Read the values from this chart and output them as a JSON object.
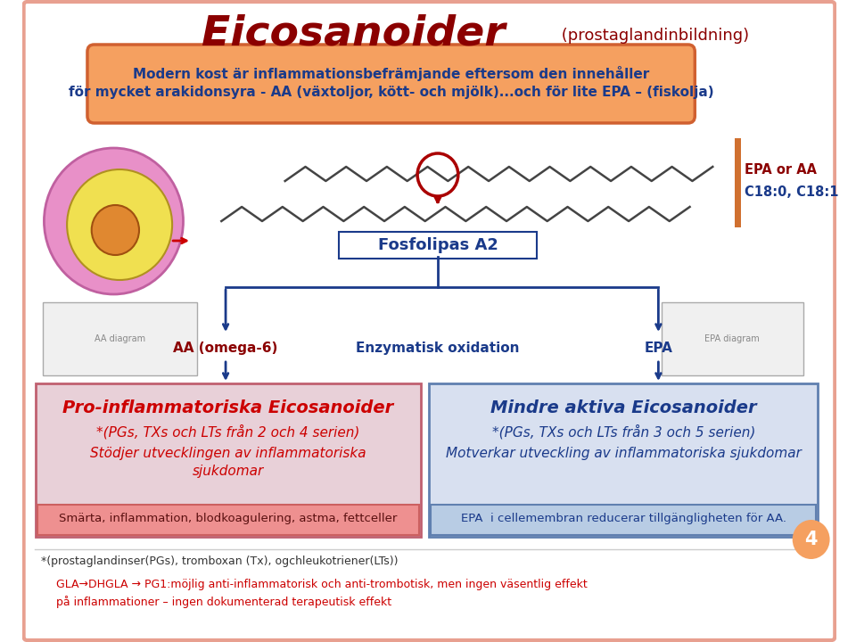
{
  "title_main": "Eicosanoider",
  "title_sub": " (prostaglandinbildning)",
  "title_color": "#8B0000",
  "title_sub_color": "#8B0000",
  "bg_color": "#FFFFFF",
  "border_color": "#E8A090",
  "orange_box_text1": "Modern kost är inflammationsbefrämjande eftersom den innehåller",
  "orange_box_text2": "för mycket arakidonsyra - AA (växtoljor, kött- och mjölk)...och för lite EPA – (fiskolja)",
  "orange_box_color": "#F5A060",
  "orange_box_border": "#D06030",
  "epa_aa_label": "EPA or AA",
  "c_label": "C18:0, C18:1",
  "fosfolipas_label": "Fosfolipas A2",
  "aa_label": "AA (omega-6)",
  "enzymatic_label": "Enzymatisk oxidation",
  "epa_label": "EPA",
  "left_box_title": "Pro-inflammatoriska Eicosanoider",
  "left_box_line1": "*(PGs, TXs och LTs från 2 och 4 serien)",
  "left_box_line2": "Stödjer utvecklingen av inflammatoriska",
  "left_box_line3": "sjukdomar",
  "left_box_bottom": "Smärta, inflammation, blodkoagulering, astma, fettceller",
  "left_box_bg": "#E8D0D8",
  "left_box_border": "#C06070",
  "left_box_title_color": "#CC0000",
  "left_box_text_color": "#CC0000",
  "left_bottom_bg": "#EE9090",
  "left_bottom_text_color": "#5A1010",
  "right_box_title": "Mindre aktiva Eicosanoider",
  "right_box_line1": "*(PGs, TXs och LTs från 3 och 5 serien)",
  "right_box_line2": "Motverkar utveckling av inflammatoriska sjukdomar",
  "right_box_bottom": "EPA  i cellemembran reducerar tillgängligheten för AA.",
  "right_box_bg": "#D8E0F0",
  "right_box_border": "#6080B0",
  "right_box_title_color": "#1A3A8A",
  "right_box_text_color": "#1A3A8A",
  "right_bottom_bg": "#B8CCE4",
  "footer1": "*(prostaglandinser(PGs), tromboxan (Tx), ogchleukotriener(LTs))",
  "footer2": "GLA→DHGLA → PG1:möjlig anti-inflammatorisk och anti-trombotisk, men ingen väsentlig effekt",
  "footer3": "på inflammationer – ingen dokumenterad terapeutisk effekt",
  "footer_color": "#333333",
  "footer_red_color": "#CC0000",
  "page_num": "4",
  "arrow_color": "#1A3A8A",
  "dark_red": "#8B0000",
  "navy": "#1A3A8A",
  "orange_accent": "#D07030"
}
